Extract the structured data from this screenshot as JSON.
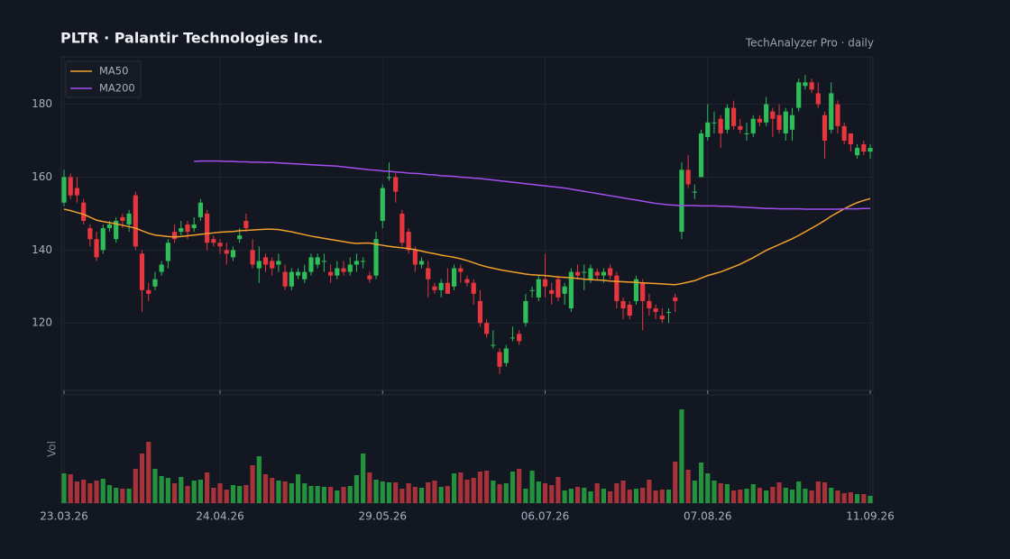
{
  "chart_data": {
    "type": "candlestick",
    "title": "PLTR  ·  Palantir Technologies Inc.",
    "subtitle": "TechAnalyzer Pro · daily",
    "categories": [
      "23.03.26",
      null,
      null,
      null,
      null,
      null,
      null,
      null,
      null,
      null,
      null,
      null,
      null,
      null,
      null,
      null,
      null,
      null,
      null,
      null,
      null,
      null,
      null,
      null,
      "24.04.26",
      null,
      null,
      null,
      null,
      null,
      null,
      null,
      null,
      null,
      null,
      null,
      null,
      null,
      null,
      null,
      null,
      null,
      null,
      null,
      null,
      null,
      null,
      null,
      null,
      "29.05.26",
      null,
      null,
      null,
      null,
      null,
      null,
      null,
      null,
      null,
      null,
      null,
      null,
      null,
      null,
      null,
      null,
      null,
      null,
      null,
      null,
      null,
      null,
      null,
      null,
      "06.07.26",
      null,
      null,
      null,
      null,
      null,
      null,
      null,
      null,
      null,
      null,
      null,
      null,
      null,
      null,
      null,
      null,
      null,
      null,
      null,
      null,
      null,
      null,
      null,
      null,
      "07.08.26",
      null,
      null,
      null,
      null,
      null,
      null,
      null,
      null,
      null,
      null,
      null,
      null,
      null,
      null,
      null,
      null,
      null,
      null,
      null,
      null,
      null,
      null,
      null,
      null,
      "11.09.26"
    ],
    "ylim": [
      101.5,
      193
    ],
    "yticks": [
      120,
      140,
      160,
      180
    ],
    "grid": true,
    "legend": "upper left",
    "up_color": "#2ebd59",
    "down_color": "#e8363f",
    "open": [
      153,
      160,
      157,
      153,
      146,
      143,
      140,
      146,
      143,
      149,
      147,
      155,
      139,
      129,
      130,
      134,
      137,
      145,
      145,
      147,
      146,
      149,
      150,
      143,
      142,
      140,
      138,
      143,
      148,
      140,
      135,
      138,
      137,
      136,
      134,
      130,
      133,
      132,
      134,
      136,
      137,
      134,
      133,
      135,
      134,
      136,
      137,
      133,
      133,
      148,
      160,
      160,
      150,
      145,
      140,
      136,
      135,
      130,
      129,
      131,
      130,
      135,
      132,
      131,
      126,
      120,
      114,
      112,
      109,
      116,
      117,
      120,
      129,
      127,
      132,
      129,
      132,
      128,
      124,
      134,
      134,
      132,
      134,
      133,
      135,
      133,
      126,
      125,
      126,
      131,
      126,
      124,
      122,
      123,
      127,
      145,
      162,
      156,
      160,
      171,
      175,
      176,
      173,
      179,
      174,
      172,
      172,
      176,
      175,
      178,
      177,
      172,
      173,
      179,
      185,
      186,
      183,
      177,
      173,
      180,
      174,
      172,
      166,
      169,
      167
    ],
    "high": [
      162,
      161,
      160,
      154,
      147,
      145,
      147,
      148,
      149,
      150,
      151,
      156,
      140,
      131,
      134,
      137,
      143,
      147,
      148,
      148,
      149,
      154,
      151,
      144,
      143,
      142,
      141,
      146,
      150,
      143,
      141,
      139,
      138,
      139,
      136,
      135,
      135,
      136,
      139,
      139,
      139,
      136,
      137,
      137,
      138,
      139,
      138,
      134,
      145,
      158,
      164,
      161,
      151,
      146,
      141,
      138,
      137,
      131,
      132,
      135,
      136,
      136,
      133,
      132,
      129,
      121,
      118,
      113,
      114,
      119,
      118,
      128,
      130,
      133,
      139,
      131,
      133,
      131,
      135,
      136,
      136,
      136,
      135,
      135,
      136,
      134,
      127,
      126,
      133,
      132,
      128,
      125,
      124,
      124,
      128,
      164,
      166,
      158,
      173,
      180,
      178,
      177,
      180,
      181,
      176,
      175,
      177,
      177,
      182,
      179,
      180,
      179,
      179,
      187,
      188,
      187,
      186,
      178,
      186,
      181,
      175,
      172,
      169,
      170,
      169
    ],
    "low": [
      152,
      154,
      153,
      147,
      141,
      137,
      139,
      145,
      142,
      146,
      145,
      140,
      123,
      126,
      129,
      133,
      135,
      142,
      144,
      143,
      145,
      148,
      140,
      141,
      139,
      136,
      137,
      142,
      145,
      135,
      131,
      134,
      133,
      134,
      129,
      129,
      132,
      131,
      133,
      135,
      134,
      131,
      132,
      133,
      133,
      134,
      135,
      131,
      132,
      146,
      159,
      153,
      141,
      139,
      134,
      135,
      127,
      128,
      127,
      128,
      129,
      131,
      130,
      125,
      119,
      116,
      113,
      106,
      108,
      115,
      114,
      119,
      127,
      126,
      127,
      125,
      126,
      125,
      123,
      132,
      129,
      131,
      132,
      131,
      132,
      124,
      121,
      121,
      125,
      118,
      122,
      121,
      120,
      120,
      123,
      143,
      157,
      154,
      160,
      170,
      172,
      168,
      172,
      173,
      172,
      170,
      171,
      174,
      174,
      171,
      172,
      170,
      170,
      178,
      184,
      183,
      179,
      165,
      172,
      172,
      169,
      167,
      165,
      166,
      165
    ],
    "close": [
      160,
      155,
      155,
      148,
      143,
      138,
      146,
      147,
      148,
      148,
      150,
      141,
      129,
      128,
      132,
      136,
      142,
      143,
      146,
      145,
      147,
      153,
      142,
      142,
      141,
      139,
      140,
      144,
      146,
      136,
      137,
      136,
      135,
      137,
      130,
      134,
      134,
      134,
      138,
      138,
      137,
      133,
      135,
      134,
      136,
      137,
      137,
      132,
      143,
      157,
      160,
      156,
      142,
      140,
      136,
      137,
      132,
      129,
      131,
      128,
      135,
      134,
      131,
      128,
      120,
      117,
      114,
      108,
      113,
      116,
      115,
      126,
      129,
      132,
      130,
      128,
      127,
      130,
      134,
      133,
      134,
      135,
      133,
      134,
      133,
      126,
      124,
      122,
      132,
      126,
      124,
      123,
      121,
      123,
      126,
      162,
      158,
      156,
      172,
      175,
      175,
      172,
      179,
      174,
      173,
      172,
      176,
      175,
      180,
      176,
      173,
      178,
      177,
      186,
      186,
      184,
      180,
      170,
      183,
      174,
      170,
      169,
      168,
      167,
      168
    ],
    "series": [
      {
        "name": "MA50",
        "color": "#f0a12c",
        "values": [
          151.2,
          150.8,
          150.3,
          149.8,
          149.0,
          148.2,
          147.8,
          147.5,
          147.2,
          146.8,
          146.4,
          146.0,
          145.3,
          144.6,
          144.1,
          143.9,
          143.7,
          143.6,
          143.7,
          143.9,
          144.1,
          144.3,
          144.5,
          144.7,
          144.9,
          145.0,
          145.1,
          145.3,
          145.4,
          145.5,
          145.6,
          145.7,
          145.7,
          145.6,
          145.3,
          145.0,
          144.6,
          144.2,
          143.8,
          143.5,
          143.2,
          142.9,
          142.6,
          142.3,
          142.0,
          141.8,
          141.9,
          141.9,
          141.6,
          141.3,
          141.0,
          140.8,
          140.6,
          140.4,
          140.1,
          139.7,
          139.3,
          139.0,
          138.6,
          138.3,
          138.0,
          137.6,
          137.1,
          136.5,
          135.9,
          135.4,
          135.0,
          134.6,
          134.3,
          134.0,
          133.7,
          133.4,
          133.2,
          133.1,
          133.0,
          132.8,
          132.6,
          132.5,
          132.4,
          132.2,
          132.0,
          131.9,
          131.8,
          131.7,
          131.5,
          131.4,
          131.3,
          131.2,
          131.1,
          131.0,
          130.9,
          130.8,
          130.7,
          130.6,
          130.5,
          130.8,
          131.2,
          131.6,
          132.3,
          133.0,
          133.5,
          134.0,
          134.7,
          135.4,
          136.1,
          137.0,
          137.9,
          138.9,
          139.9,
          140.7,
          141.5,
          142.3,
          143.1,
          144.0,
          145.0,
          146.0,
          147.0,
          148.1,
          149.3,
          150.3,
          151.3,
          152.2,
          153.0,
          153.6,
          154.1
        ]
      },
      {
        "name": "MA200",
        "color": "#a24ff0",
        "values": [
          null,
          null,
          null,
          null,
          null,
          null,
          null,
          null,
          null,
          null,
          null,
          null,
          null,
          null,
          null,
          null,
          null,
          null,
          null,
          null,
          164.3,
          164.4,
          164.4,
          164.4,
          164.4,
          164.3,
          164.3,
          164.2,
          164.2,
          164.1,
          164.1,
          164.0,
          164.0,
          163.9,
          163.8,
          163.7,
          163.6,
          163.5,
          163.4,
          163.3,
          163.2,
          163.1,
          163.0,
          162.8,
          162.6,
          162.4,
          162.2,
          162.0,
          161.9,
          161.7,
          161.6,
          161.4,
          161.3,
          161.1,
          161.0,
          160.9,
          160.7,
          160.6,
          160.4,
          160.3,
          160.2,
          160.0,
          159.9,
          159.7,
          159.6,
          159.4,
          159.2,
          159.0,
          158.8,
          158.6,
          158.4,
          158.2,
          158.0,
          157.8,
          157.6,
          157.4,
          157.2,
          157.0,
          156.7,
          156.4,
          156.1,
          155.8,
          155.5,
          155.2,
          154.9,
          154.6,
          154.3,
          154.0,
          153.7,
          153.4,
          153.1,
          152.8,
          152.6,
          152.4,
          152.3,
          152.2,
          152.2,
          152.2,
          152.1,
          152.1,
          152.1,
          152.0,
          152.0,
          151.9,
          151.8,
          151.7,
          151.6,
          151.5,
          151.4,
          151.4,
          151.3,
          151.3,
          151.3,
          151.3,
          151.2,
          151.2,
          151.2,
          151.2,
          151.2,
          151.2,
          151.3,
          151.3,
          151.3,
          151.4,
          151.4
        ]
      }
    ],
    "volume": {
      "label": "Vol",
      "ylim": [
        0,
        118
      ],
      "up_color": "#23913e",
      "down_color": "#a8323a",
      "values": [
        33,
        32,
        24,
        26,
        22,
        25,
        27,
        20,
        17,
        16,
        16,
        38,
        55,
        68,
        38,
        30,
        28,
        22,
        29,
        19,
        25,
        26,
        34,
        17,
        22,
        15,
        20,
        19,
        20,
        42,
        52,
        32,
        28,
        25,
        24,
        22,
        32,
        22,
        19,
        19,
        18,
        18,
        14,
        18,
        19,
        31,
        55,
        34,
        26,
        24,
        23,
        23,
        16,
        22,
        18,
        17,
        23,
        25,
        18,
        19,
        33,
        34,
        26,
        28,
        35,
        36,
        25,
        21,
        22,
        35,
        38,
        16,
        36,
        24,
        22,
        20,
        29,
        14,
        16,
        18,
        17,
        13,
        22,
        16,
        13,
        22,
        25,
        15,
        16,
        17,
        26,
        14,
        15,
        15,
        46,
        104,
        37,
        25,
        45,
        33,
        25,
        22,
        21,
        14,
        15,
        16,
        21,
        17,
        14,
        18,
        23,
        17,
        15,
        24,
        16,
        14,
        24,
        23,
        17,
        14,
        11,
        12,
        10,
        10,
        8
      ]
    }
  }
}
